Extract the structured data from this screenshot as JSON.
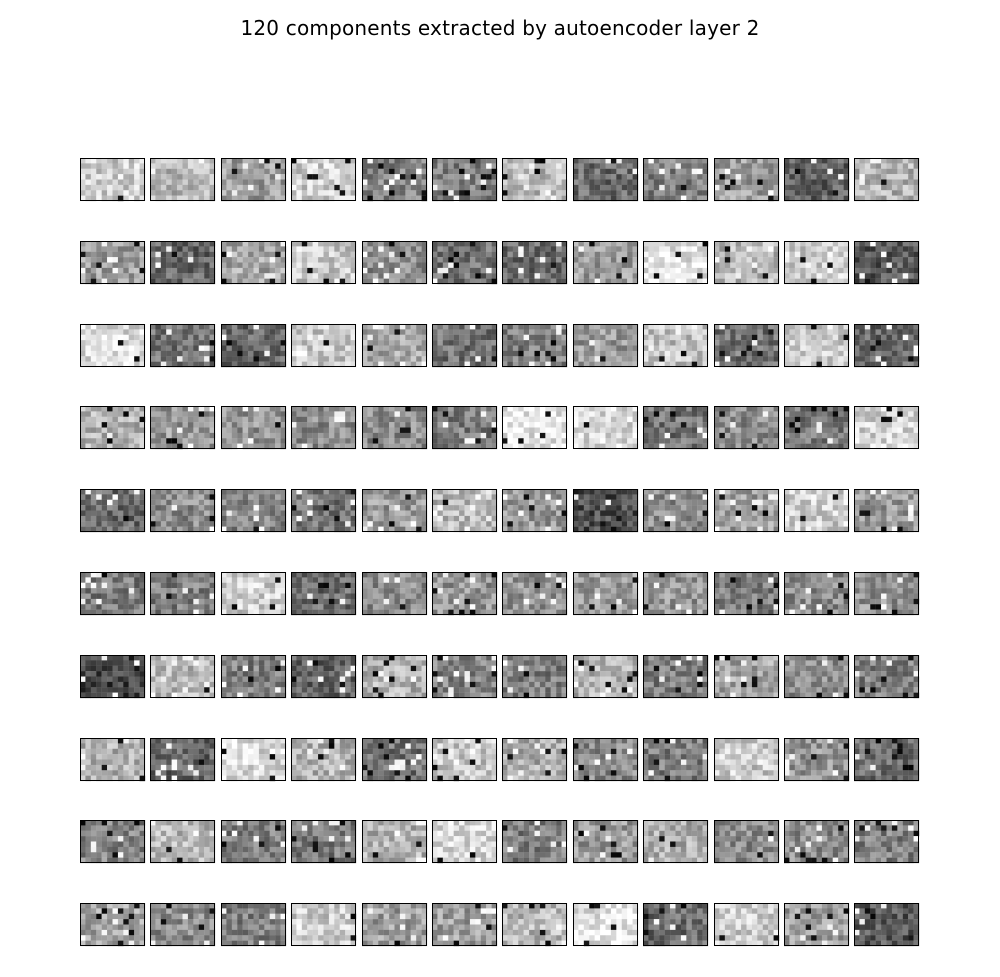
{
  "figure": {
    "title": "120 components extracted by autoencoder layer 2"
  },
  "chart_data": {
    "type": "heatmap",
    "title": "120 components extracted by autoencoder layer 2",
    "layout": {
      "rows": 10,
      "cols": 12
    },
    "component_count": 120,
    "colormap": "gray",
    "axes_visible": false,
    "component_mean_gray": [
      [
        0.8,
        0.72,
        0.62,
        0.8,
        0.52,
        0.5,
        0.72,
        0.42,
        0.5,
        0.62,
        0.38,
        0.7
      ],
      [
        0.62,
        0.4,
        0.65,
        0.78,
        0.55,
        0.45,
        0.42,
        0.62,
        0.9,
        0.72,
        0.8,
        0.35
      ],
      [
        0.85,
        0.45,
        0.4,
        0.78,
        0.65,
        0.45,
        0.5,
        0.6,
        0.75,
        0.45,
        0.78,
        0.4
      ],
      [
        0.7,
        0.6,
        0.58,
        0.55,
        0.55,
        0.48,
        0.9,
        0.85,
        0.45,
        0.55,
        0.48,
        0.82
      ],
      [
        0.42,
        0.55,
        0.52,
        0.45,
        0.6,
        0.72,
        0.6,
        0.3,
        0.55,
        0.62,
        0.8,
        0.6
      ],
      [
        0.48,
        0.5,
        0.8,
        0.42,
        0.55,
        0.58,
        0.58,
        0.62,
        0.58,
        0.48,
        0.55,
        0.58
      ],
      [
        0.25,
        0.72,
        0.5,
        0.4,
        0.7,
        0.52,
        0.5,
        0.7,
        0.5,
        0.65,
        0.55,
        0.5
      ],
      [
        0.7,
        0.4,
        0.85,
        0.7,
        0.45,
        0.78,
        0.68,
        0.55,
        0.5,
        0.78,
        0.58,
        0.42
      ],
      [
        0.52,
        0.72,
        0.5,
        0.48,
        0.7,
        0.85,
        0.5,
        0.6,
        0.68,
        0.55,
        0.55,
        0.5
      ],
      [
        0.65,
        0.55,
        0.5,
        0.8,
        0.62,
        0.62,
        0.72,
        0.9,
        0.42,
        0.8,
        0.62,
        0.35
      ]
    ]
  }
}
